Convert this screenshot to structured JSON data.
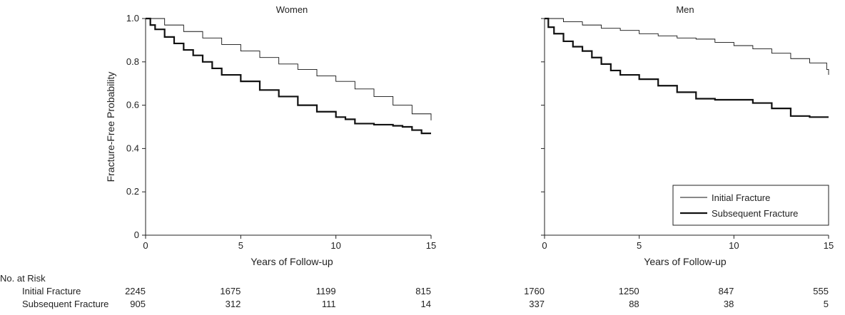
{
  "chart_data": [
    {
      "type": "line",
      "title": "Women",
      "xlabel": "Years of Follow-up",
      "ylabel": "Fracture-Free Probability",
      "xlim": [
        0,
        15
      ],
      "ylim": [
        0,
        1.0
      ],
      "xticks": [
        "0",
        "5",
        "10",
        "15"
      ],
      "yticks": [
        "0",
        "0.2",
        "0.4",
        "0.6",
        "0.8",
        "1.0"
      ],
      "step": true,
      "grid": false,
      "series": [
        {
          "name": "Initial Fracture",
          "style": "thin",
          "x": [
            0,
            1,
            2,
            3,
            4,
            5,
            6,
            7,
            8,
            9,
            10,
            11,
            12,
            13,
            14,
            14.9,
            15
          ],
          "y": [
            1.0,
            0.97,
            0.94,
            0.91,
            0.88,
            0.85,
            0.82,
            0.79,
            0.765,
            0.735,
            0.71,
            0.675,
            0.64,
            0.6,
            0.56,
            0.56,
            0.53
          ]
        },
        {
          "name": "Subsequent Fracture",
          "style": "thick",
          "x": [
            0,
            0.25,
            0.5,
            1,
            1.5,
            2,
            2.5,
            3,
            3.5,
            4,
            5,
            6,
            7,
            8,
            9,
            10,
            10.5,
            11,
            12,
            13,
            13.5,
            14,
            14.5,
            15
          ],
          "y": [
            1.0,
            0.97,
            0.95,
            0.915,
            0.885,
            0.855,
            0.83,
            0.8,
            0.77,
            0.74,
            0.71,
            0.67,
            0.64,
            0.6,
            0.57,
            0.545,
            0.535,
            0.515,
            0.51,
            0.505,
            0.5,
            0.485,
            0.47,
            0.47
          ]
        }
      ],
      "risk_table": {
        "x": [
          0,
          5,
          10,
          15
        ],
        "rows": [
          {
            "label": "Initial Fracture",
            "values": [
              "2245",
              "1675",
              "1199",
              "815"
            ]
          },
          {
            "label": "Subsequent Fracture",
            "values": [
              "905",
              "312",
              "111",
              "14"
            ]
          }
        ]
      }
    },
    {
      "type": "line",
      "title": "Men",
      "xlabel": "Years of Follow-up",
      "ylabel": "",
      "xlim": [
        0,
        15
      ],
      "ylim": [
        0,
        1.0
      ],
      "xticks": [
        "0",
        "5",
        "10",
        "15"
      ],
      "yticks": [],
      "step": true,
      "grid": false,
      "legend": {
        "placement": "bottom-right",
        "entries": [
          {
            "name": "Initial Fracture",
            "style": "thin"
          },
          {
            "name": "Subsequent Fracture",
            "style": "thick"
          }
        ]
      },
      "series": [
        {
          "name": "Initial Fracture",
          "style": "thin",
          "x": [
            0,
            1,
            2,
            3,
            4,
            5,
            6,
            7,
            8,
            9,
            10,
            11,
            12,
            13,
            14,
            14.9,
            15
          ],
          "y": [
            1.0,
            0.985,
            0.97,
            0.955,
            0.945,
            0.93,
            0.92,
            0.91,
            0.905,
            0.89,
            0.875,
            0.86,
            0.84,
            0.815,
            0.795,
            0.765,
            0.74
          ]
        },
        {
          "name": "Subsequent Fracture",
          "style": "thick",
          "x": [
            0,
            0.2,
            0.5,
            1,
            1.5,
            2,
            2.5,
            3,
            3.5,
            4,
            5,
            6,
            7,
            8,
            9,
            10,
            11,
            12,
            13,
            14,
            15
          ],
          "y": [
            1.0,
            0.96,
            0.93,
            0.895,
            0.87,
            0.85,
            0.82,
            0.79,
            0.76,
            0.74,
            0.72,
            0.69,
            0.66,
            0.63,
            0.625,
            0.625,
            0.61,
            0.585,
            0.55,
            0.545,
            0.545
          ]
        }
      ],
      "risk_table": {
        "x": [
          0,
          5,
          10,
          15
        ],
        "rows": [
          {
            "label": "Initial Fracture",
            "values": [
              "1760",
              "1250",
              "847",
              "555"
            ]
          },
          {
            "label": "Subsequent Fracture",
            "values": [
              "337",
              "88",
              "38",
              "5"
            ]
          }
        ]
      }
    }
  ],
  "risk_header": "No. at Risk"
}
